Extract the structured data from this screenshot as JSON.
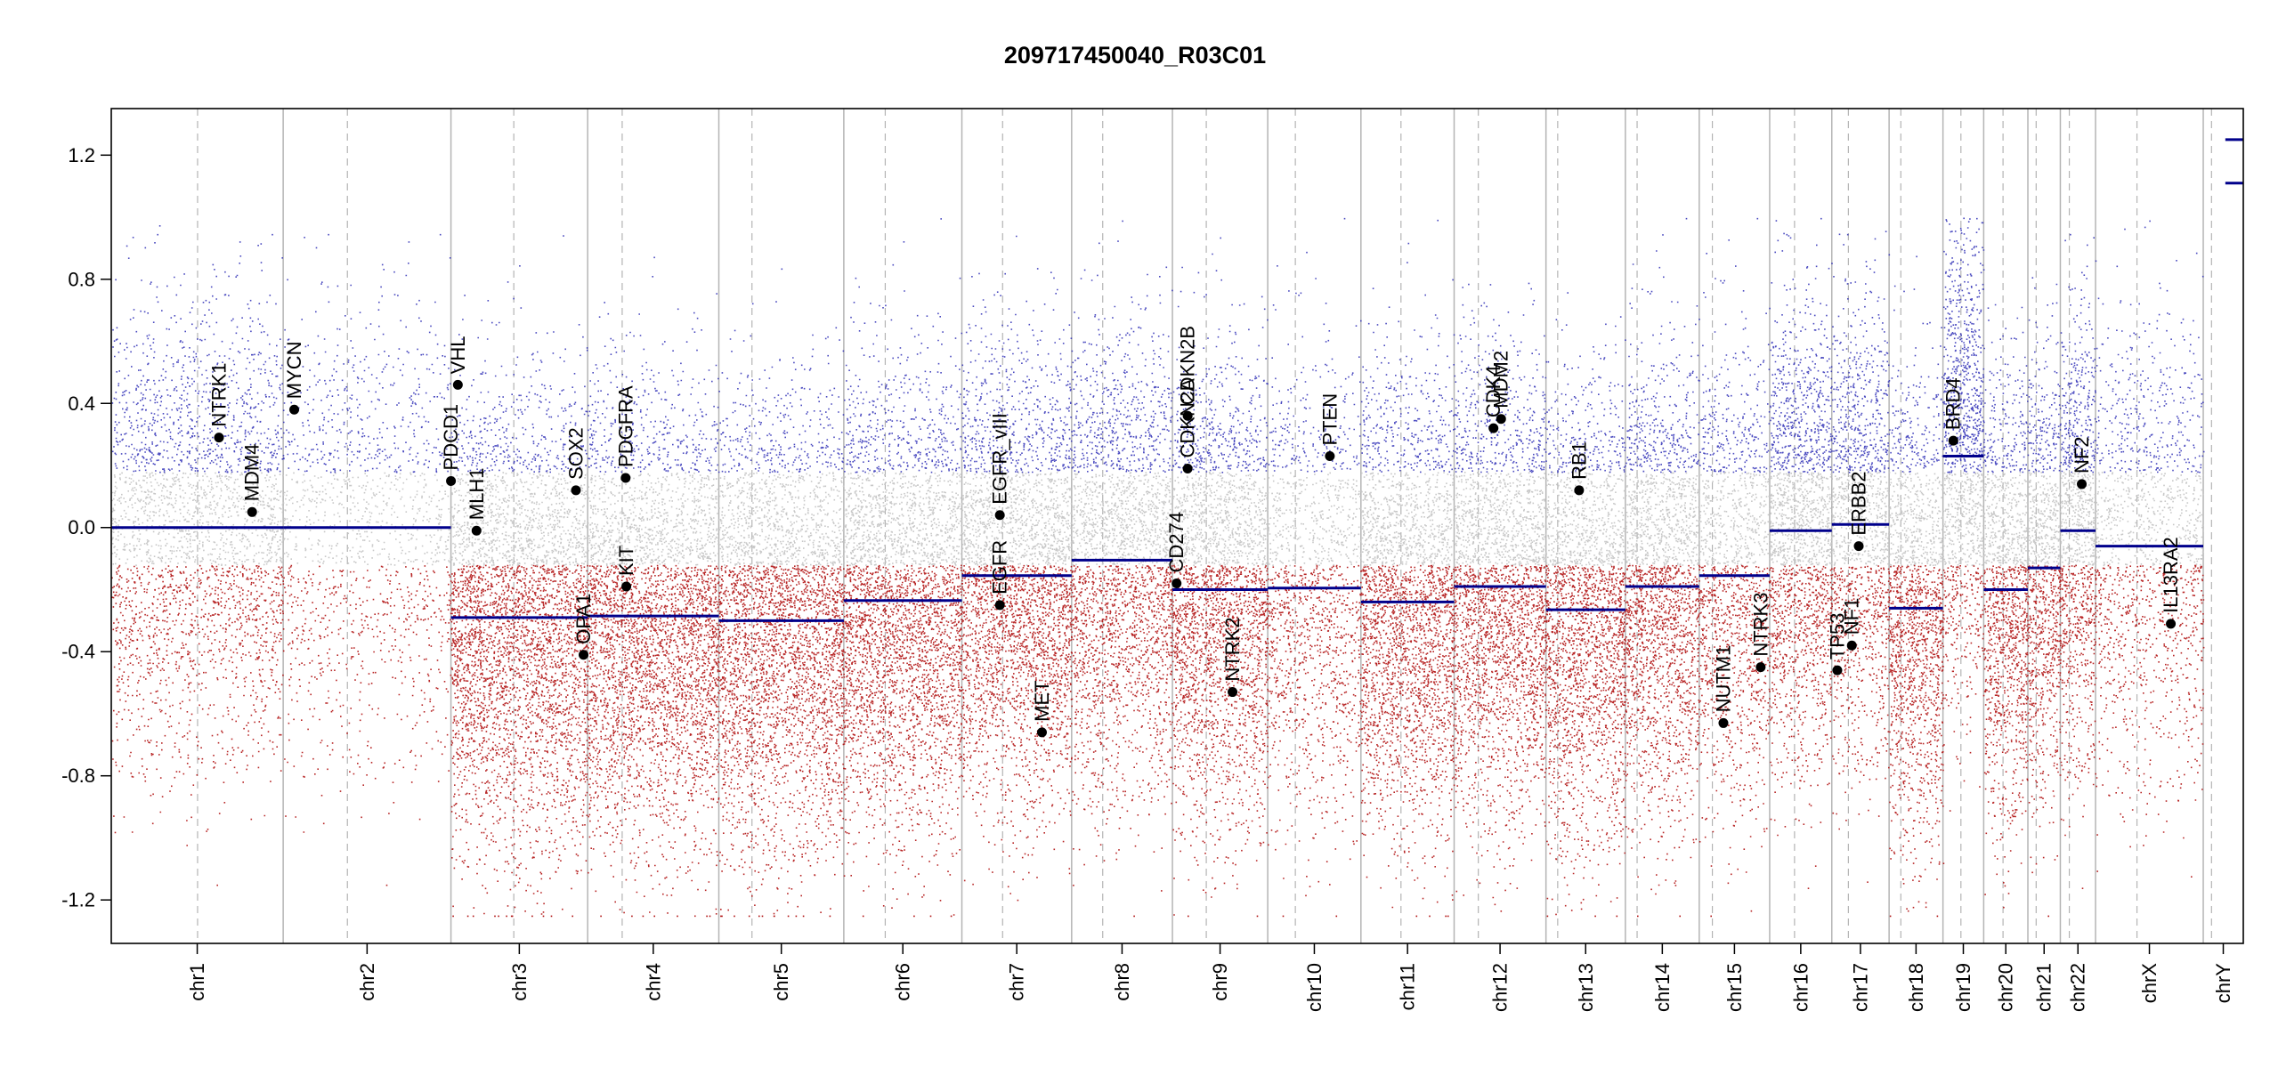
{
  "chart_data": {
    "type": "scatter",
    "title": "209717450040_R03C01",
    "xlabel": "",
    "ylabel": "",
    "ylim": [
      -1.34,
      1.35
    ],
    "yticks": [
      -1.2,
      -0.8,
      -0.4,
      0.0,
      0.4,
      0.8,
      1.2
    ],
    "ytick_labels": [
      "-1.2",
      "-0.8",
      "-0.4",
      "0.0",
      "0.4",
      "0.8",
      "1.2"
    ],
    "chromosomes": [
      {
        "name": "chr1",
        "start": 0,
        "end": 249,
        "centromere": 125
      },
      {
        "name": "chr2",
        "start": 249,
        "end": 492,
        "centromere": 342
      },
      {
        "name": "chr3",
        "start": 492,
        "end": 690,
        "centromere": 583
      },
      {
        "name": "chr4",
        "start": 690,
        "end": 880,
        "centromere": 740
      },
      {
        "name": "chr5",
        "start": 880,
        "end": 1061,
        "centromere": 928
      },
      {
        "name": "chr6",
        "start": 1061,
        "end": 1232,
        "centromere": 1121
      },
      {
        "name": "chr7",
        "start": 1232,
        "end": 1391,
        "centromere": 1291
      },
      {
        "name": "chr8",
        "start": 1391,
        "end": 1537,
        "centromere": 1436
      },
      {
        "name": "chr9",
        "start": 1537,
        "end": 1675,
        "centromere": 1586
      },
      {
        "name": "chr10",
        "start": 1675,
        "end": 1810,
        "centromere": 1715
      },
      {
        "name": "chr11",
        "start": 1810,
        "end": 1945,
        "centromere": 1868
      },
      {
        "name": "chr12",
        "start": 1945,
        "end": 2078,
        "centromere": 1980
      },
      {
        "name": "chr13",
        "start": 2078,
        "end": 2193,
        "centromere": 2095
      },
      {
        "name": "chr14",
        "start": 2193,
        "end": 2300,
        "centromere": 2210
      },
      {
        "name": "chr15",
        "start": 2300,
        "end": 2402,
        "centromere": 2319
      },
      {
        "name": "chr16",
        "start": 2402,
        "end": 2492,
        "centromere": 2438
      },
      {
        "name": "chr17",
        "start": 2492,
        "end": 2575,
        "centromere": 2516
      },
      {
        "name": "chr18",
        "start": 2575,
        "end": 2653,
        "centromere": 2592
      },
      {
        "name": "chr19",
        "start": 2653,
        "end": 2712,
        "centromere": 2679
      },
      {
        "name": "chr20",
        "start": 2712,
        "end": 2776,
        "centromere": 2740
      },
      {
        "name": "chr21",
        "start": 2776,
        "end": 2823,
        "centromere": 2788
      },
      {
        "name": "chr22",
        "start": 2823,
        "end": 2874,
        "centromere": 2836
      },
      {
        "name": "chrX",
        "start": 2874,
        "end": 3030,
        "centromere": 2934
      },
      {
        "name": "chrY",
        "start": 3030,
        "end": 3088,
        "centromere": 3042
      }
    ],
    "segments": [
      {
        "start": 0,
        "end": 249,
        "value": 0.0
      },
      {
        "start": 249,
        "end": 492,
        "value": 0.0
      },
      {
        "start": 492,
        "end": 690,
        "value": -0.29
      },
      {
        "start": 690,
        "end": 880,
        "value": -0.285
      },
      {
        "start": 880,
        "end": 1061,
        "value": -0.3
      },
      {
        "start": 1061,
        "end": 1232,
        "value": -0.235
      },
      {
        "start": 1232,
        "end": 1391,
        "value": -0.155
      },
      {
        "start": 1391,
        "end": 1537,
        "value": -0.105
      },
      {
        "start": 1537,
        "end": 1675,
        "value": -0.2
      },
      {
        "start": 1675,
        "end": 1810,
        "value": -0.195
      },
      {
        "start": 1810,
        "end": 1945,
        "value": -0.24
      },
      {
        "start": 1945,
        "end": 2078,
        "value": -0.19
      },
      {
        "start": 2078,
        "end": 2193,
        "value": -0.265
      },
      {
        "start": 2193,
        "end": 2300,
        "value": -0.19
      },
      {
        "start": 2300,
        "end": 2402,
        "value": -0.155
      },
      {
        "start": 2402,
        "end": 2492,
        "value": -0.01
      },
      {
        "start": 2492,
        "end": 2575,
        "value": 0.01
      },
      {
        "start": 2575,
        "end": 2653,
        "value": -0.26
      },
      {
        "start": 2653,
        "end": 2712,
        "value": 0.23
      },
      {
        "start": 2712,
        "end": 2776,
        "value": -0.2
      },
      {
        "start": 2776,
        "end": 2823,
        "value": -0.13
      },
      {
        "start": 2823,
        "end": 2874,
        "value": -0.01
      },
      {
        "start": 2874,
        "end": 3030,
        "value": -0.06
      },
      {
        "start": 3062,
        "end": 3088,
        "value": 1.25
      },
      {
        "start": 3062,
        "end": 3088,
        "value": 1.11
      }
    ],
    "genes": [
      {
        "name": "NTRK1",
        "pos": 156,
        "value": 0.29
      },
      {
        "name": "MDM4",
        "pos": 204,
        "value": 0.05
      },
      {
        "name": "MYCN",
        "pos": 265,
        "value": 0.38
      },
      {
        "name": "PDCD1",
        "pos": 492,
        "value": 0.15
      },
      {
        "name": "VHL",
        "pos": 502,
        "value": 0.46
      },
      {
        "name": "MLH1",
        "pos": 529,
        "value": -0.01
      },
      {
        "name": "SOX2",
        "pos": 673,
        "value": 0.12
      },
      {
        "name": "OPA1",
        "pos": 684,
        "value": -0.41
      },
      {
        "name": "PDGFRA",
        "pos": 745,
        "value": 0.16
      },
      {
        "name": "KIT",
        "pos": 746,
        "value": -0.19
      },
      {
        "name": "EGFR_vIII",
        "pos": 1287,
        "value": 0.04
      },
      {
        "name": "EGFR",
        "pos": 1287,
        "value": -0.25
      },
      {
        "name": "MET",
        "pos": 1348,
        "value": -0.66
      },
      {
        "name": "CD274",
        "pos": 1543,
        "value": -0.18
      },
      {
        "name": "CDKN2A",
        "pos": 1559,
        "value": 0.19
      },
      {
        "name": "CDKN2B",
        "pos": 1559,
        "value": 0.36
      },
      {
        "name": "NTRK2",
        "pos": 1624,
        "value": -0.53
      },
      {
        "name": "PTEN",
        "pos": 1765,
        "value": 0.23
      },
      {
        "name": "CDK4",
        "pos": 2002,
        "value": 0.32
      },
      {
        "name": "MDM2",
        "pos": 2013,
        "value": 0.35
      },
      {
        "name": "RB1",
        "pos": 2126,
        "value": 0.12
      },
      {
        "name": "NUTM1",
        "pos": 2335,
        "value": -0.63
      },
      {
        "name": "NTRK3",
        "pos": 2389,
        "value": -0.45
      },
      {
        "name": "TP53",
        "pos": 2500,
        "value": -0.46
      },
      {
        "name": "NF1",
        "pos": 2521,
        "value": -0.38
      },
      {
        "name": "ERBB2",
        "pos": 2531,
        "value": -0.06
      },
      {
        "name": "BRD4",
        "pos": 2668,
        "value": 0.28
      },
      {
        "name": "NF2",
        "pos": 2854,
        "value": 0.14
      },
      {
        "name": "IL13RA2",
        "pos": 2983,
        "value": -0.31
      }
    ],
    "point_colors": {
      "high": "#2b2bb5",
      "mid": "#c8c8c8",
      "low": "#b01010"
    },
    "segment_color": "#00008b"
  }
}
